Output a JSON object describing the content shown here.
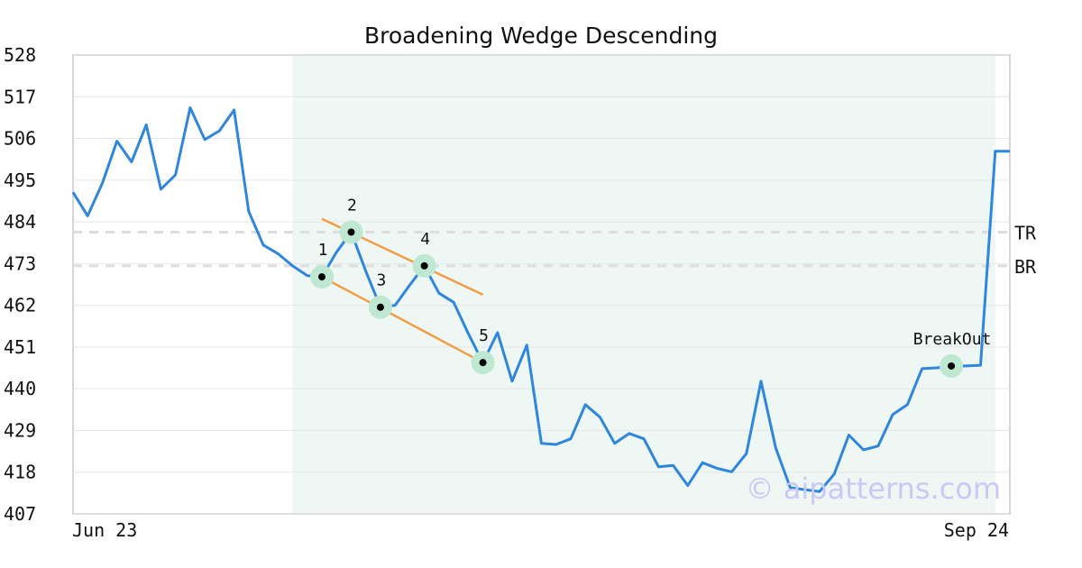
{
  "chart_data": {
    "type": "line",
    "title": "Broadening Wedge Descending",
    "x_start_label": "Jun 23",
    "x_end_label": "Sep 24",
    "ylim": [
      407,
      528
    ],
    "yticks": [
      528,
      517,
      506,
      495,
      484,
      473,
      462,
      451,
      440,
      429,
      418,
      407
    ],
    "grid": true,
    "series": [
      {
        "values": [
          491.8,
          485.6,
          494.2,
          505.3,
          499.8,
          509.6,
          492.6,
          496.4,
          514.1,
          505.7,
          508.0,
          513.5,
          486.8,
          477.9,
          475.6,
          472.4,
          469.8,
          469.5,
          476.0,
          481.3,
          471.0,
          461.5,
          462.0,
          467.3,
          472.4,
          465.2,
          462.8,
          454.6,
          446.9,
          454.8,
          442.0,
          451.5,
          425.6,
          425.3,
          426.8,
          435.8,
          432.5,
          425.6,
          428.2,
          426.8,
          419.4,
          419.8,
          414.5,
          420.5,
          419.0,
          418.1,
          422.9,
          442.0,
          424.4,
          413.9,
          413.4,
          412.9,
          417.5,
          427.8,
          423.9,
          424.9,
          433.2,
          435.8,
          445.3,
          445.5,
          446.0,
          446.0,
          446.2,
          502.6,
          502.6
        ]
      }
    ],
    "highlight_range": {
      "start_index": 15,
      "end_index": 63
    },
    "pattern_lines": [
      {
        "from": {
          "x": 17.0,
          "y": 484.8
        },
        "to": {
          "x": 28.0,
          "y": 464.8
        },
        "color": "#f39c45"
      },
      {
        "from": {
          "x": 17.0,
          "y": 469.5
        },
        "to": {
          "x": 28.0,
          "y": 446.9
        },
        "color": "#f39c45"
      }
    ],
    "pattern_points": [
      {
        "label": "1",
        "index": 17,
        "value": 469.5
      },
      {
        "label": "2",
        "index": 19,
        "value": 481.3
      },
      {
        "label": "3",
        "index": 21,
        "value": 461.5
      },
      {
        "label": "4",
        "index": 24,
        "value": 472.4
      },
      {
        "label": "5",
        "index": 28,
        "value": 446.9
      },
      {
        "label": "BreakOut",
        "index": 60,
        "value": 446.0
      }
    ],
    "reference_lines": [
      {
        "label": "TR",
        "value": 481.3
      },
      {
        "label": "BR",
        "value": 472.4
      }
    ],
    "colors": {
      "line": "#2e86de",
      "highlight": "#eef7f3",
      "marker_halo": "#bfe8d2",
      "marker_dot": "#000000",
      "reference": "#dddddd",
      "grid": "#e6e6e6"
    },
    "watermark": "© aipatterns.com"
  }
}
